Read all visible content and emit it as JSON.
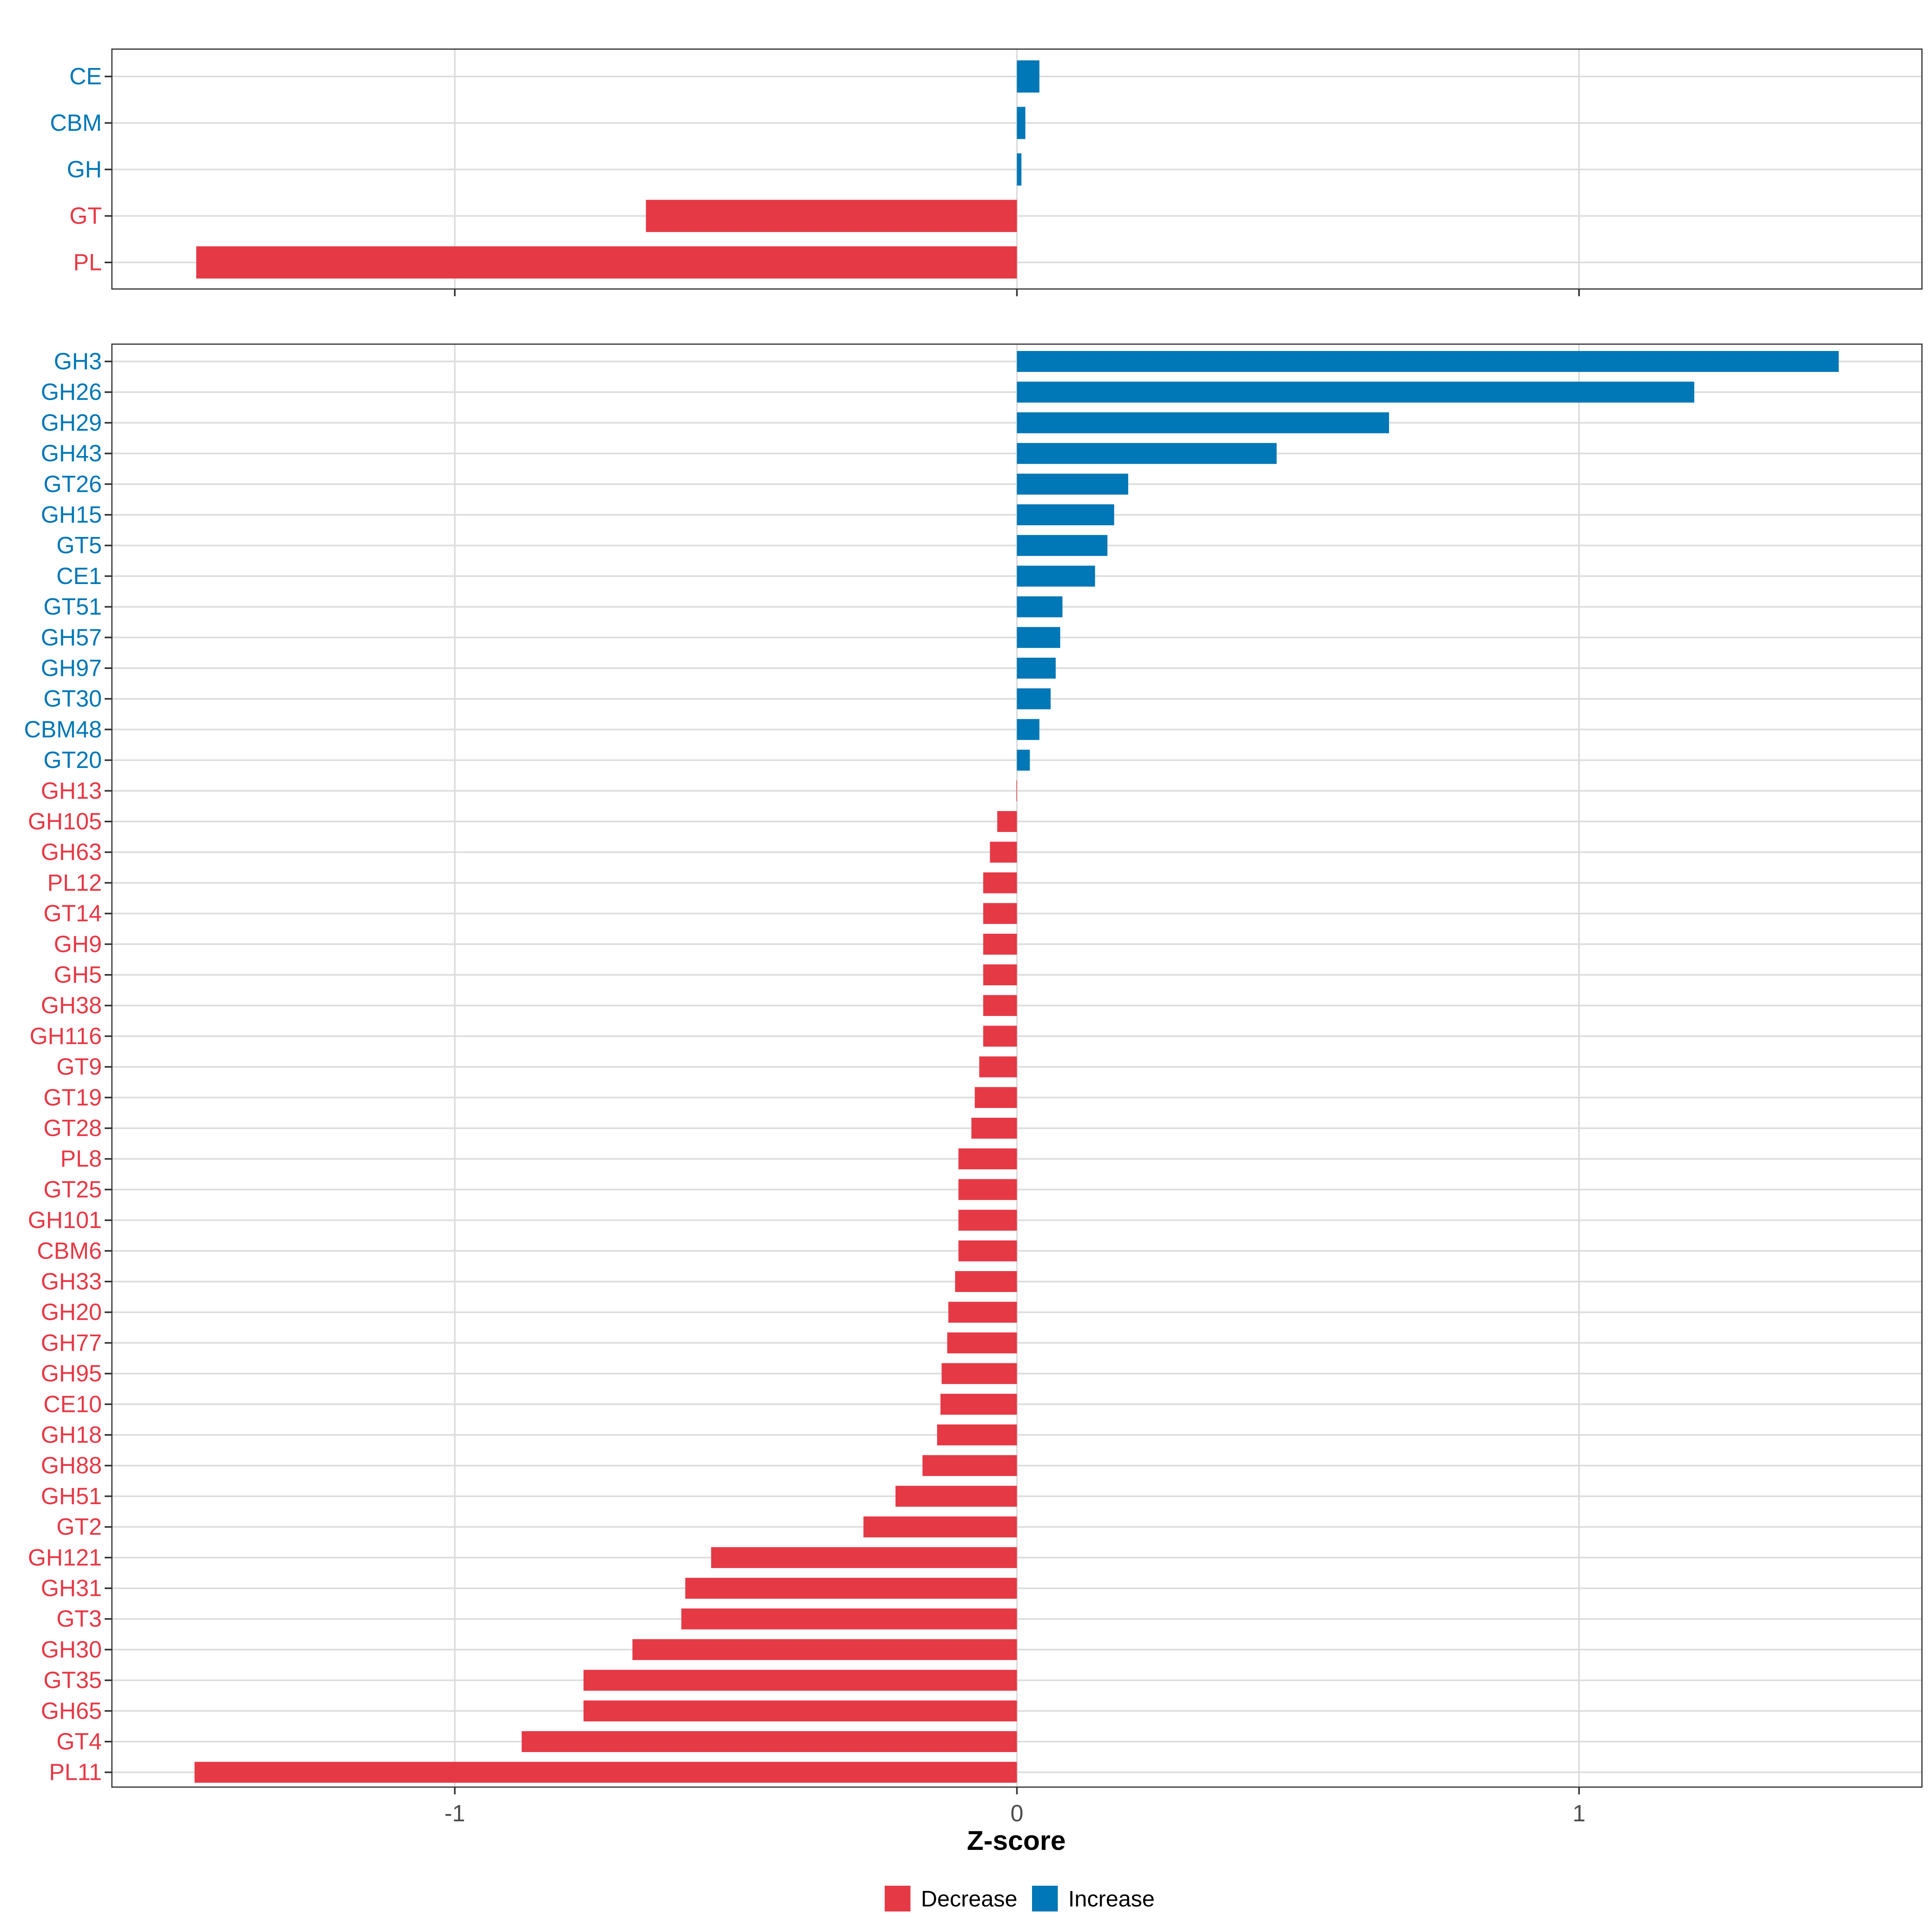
{
  "colors": {
    "decrease": "#e63946",
    "increase": "#0077b6",
    "grid": "#dcdcdc",
    "axis_text": "#4d4d4d",
    "panel_border": "#333333"
  },
  "chart_data": [
    {
      "type": "bar",
      "orientation": "horizontal",
      "panel": "top",
      "categories": [
        "CE",
        "CBM",
        "GH",
        "GT",
        "PL"
      ],
      "values": [
        0.04,
        0.015,
        0.008,
        -0.66,
        -1.46
      ],
      "xlim": [
        -1.61,
        1.61
      ],
      "xticks": [
        -1,
        0,
        1
      ],
      "grid": true
    },
    {
      "type": "bar",
      "orientation": "horizontal",
      "panel": "bottom",
      "categories": [
        "GH3",
        "GH26",
        "GH29",
        "GH43",
        "GT26",
        "GH15",
        "GT5",
        "CE1",
        "GT51",
        "GH57",
        "GH97",
        "GT30",
        "CBM48",
        "GT20",
        "GH13",
        "GH105",
        "GH63",
        "PL12",
        "GT14",
        "GH9",
        "GH5",
        "GH38",
        "GH116",
        "GT9",
        "GT19",
        "GT28",
        "PL8",
        "GT25",
        "GH101",
        "CBM6",
        "GH33",
        "GH20",
        "GH77",
        "GH95",
        "CE10",
        "GH18",
        "GH88",
        "GH51",
        "GT2",
        "GH121",
        "GH31",
        "GT3",
        "GH30",
        "GT35",
        "GH65",
        "GT4",
        "PL11"
      ],
      "values": [
        1.462,
        1.205,
        0.662,
        0.462,
        0.198,
        0.173,
        0.161,
        0.139,
        0.081,
        0.077,
        0.069,
        0.06,
        0.04,
        0.023,
        -0.001,
        -0.035,
        -0.048,
        -0.06,
        -0.06,
        -0.06,
        -0.06,
        -0.06,
        -0.06,
        -0.067,
        -0.075,
        -0.081,
        -0.104,
        -0.104,
        -0.104,
        -0.104,
        -0.11,
        -0.122,
        -0.124,
        -0.134,
        -0.136,
        -0.142,
        -0.168,
        -0.216,
        -0.273,
        -0.544,
        -0.59,
        -0.597,
        -0.684,
        -0.771,
        -0.771,
        -0.881,
        -1.463
      ],
      "xlim": [
        -1.61,
        1.61
      ],
      "xticks": [
        -1,
        0,
        1
      ],
      "tick_labels": [
        "-1",
        "0",
        "1"
      ],
      "grid": true
    }
  ],
  "xlabel": "Z-score",
  "legend": {
    "position": "bottom",
    "items": [
      {
        "label": "Decrease",
        "color_key": "decrease"
      },
      {
        "label": "Increase",
        "color_key": "increase"
      }
    ]
  }
}
